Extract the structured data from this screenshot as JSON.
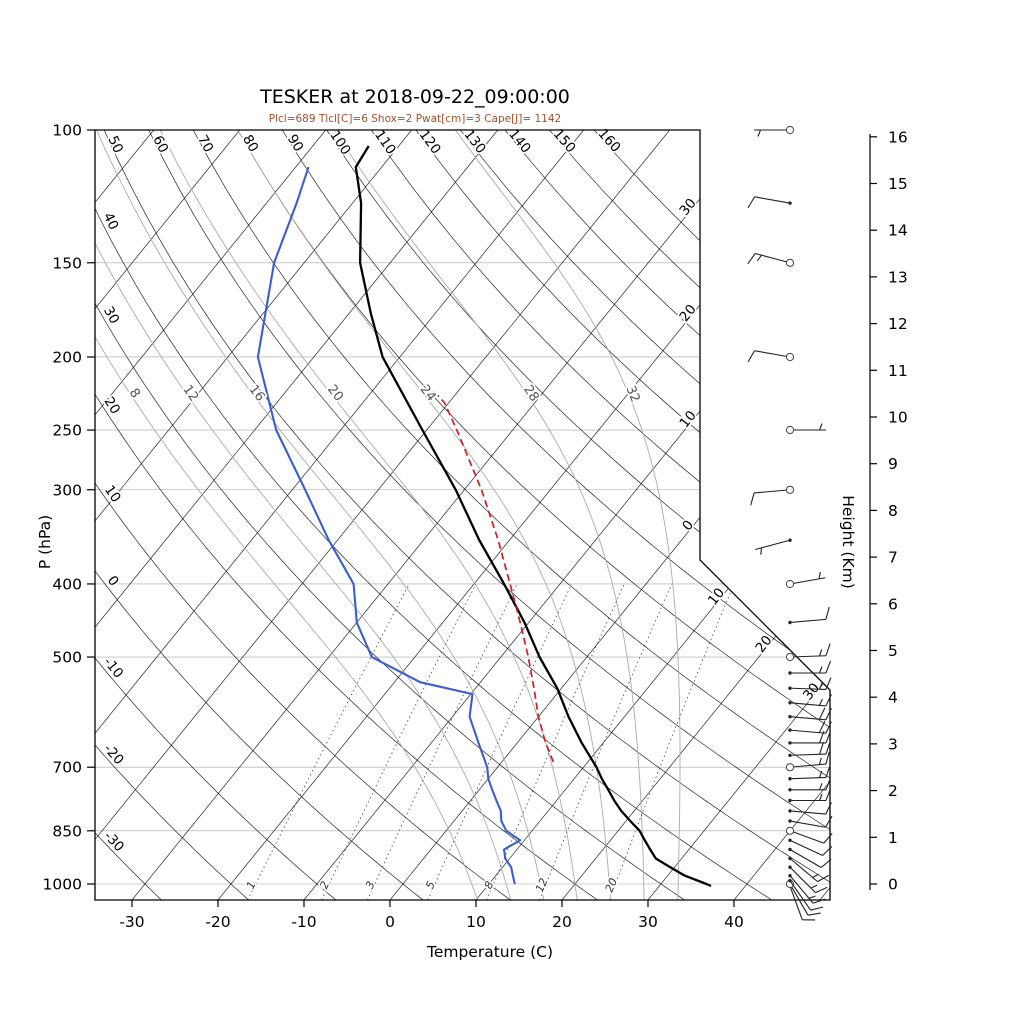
{
  "chart_data": {
    "type": "skewt",
    "title": "TESKER at 2018-09-22_09:00:00",
    "subtitle": "Plcl=689 Tlcl[C]=6 Shox=2 Pwat[cm]=3 Cape[J]= 1142",
    "axes": {
      "pressure_label": "P (hPa)",
      "temperature_label": "Temperature (C)",
      "height_label": "Height (Km)",
      "pressure_ticks": [
        100,
        150,
        200,
        250,
        300,
        400,
        500,
        700,
        850,
        1000
      ],
      "temperature_ticks": [
        -30,
        -20,
        -10,
        0,
        10,
        20,
        30,
        40
      ],
      "height_ticks": [
        0,
        1,
        2,
        3,
        4,
        5,
        6,
        7,
        8,
        9,
        10,
        11,
        12,
        13,
        14,
        15,
        16
      ]
    },
    "grid": {
      "isotherms_c": [
        -110,
        -100,
        -90,
        -80,
        -70,
        -60,
        -50,
        -40,
        -30,
        -20,
        -10,
        0,
        10,
        20,
        30,
        40,
        50
      ],
      "isotherm_edge_labels": [
        {
          "t": -30,
          "text": "30"
        },
        {
          "t": -20,
          "text": "20"
        },
        {
          "t": -10,
          "text": "10"
        },
        {
          "t": 0,
          "text": "0"
        },
        {
          "t": 10,
          "text": "10"
        },
        {
          "t": 20,
          "text": "20"
        },
        {
          "t": 30,
          "text": "30"
        }
      ],
      "dry_adiabats_c": [
        -30,
        -20,
        -10,
        0,
        10,
        20,
        30,
        40,
        50,
        60,
        70,
        80,
        90,
        100,
        110,
        120,
        130,
        140,
        150,
        160
      ],
      "dry_adiabat_left_labels": [
        40,
        30,
        20,
        10,
        0,
        -10,
        -20,
        -30
      ],
      "dry_adiabat_top_labels": [
        50,
        60,
        70,
        80,
        90,
        100,
        110,
        120,
        130,
        140,
        150,
        160
      ],
      "moist_adiabats_c": [
        8,
        12,
        16,
        20,
        24,
        28,
        32
      ],
      "mixing_ratios_g_kg": [
        1,
        2,
        3,
        5,
        8,
        12,
        20
      ]
    },
    "sounding": {
      "temperature": [
        [
          1006,
          36
        ],
        [
          1000,
          35.3
        ],
        [
          975,
          32
        ],
        [
          950,
          29.5
        ],
        [
          925,
          27
        ],
        [
          900,
          25.5
        ],
        [
          875,
          24
        ],
        [
          850,
          22.5
        ],
        [
          825,
          20.5
        ],
        [
          800,
          18.5
        ],
        [
          775,
          16.7
        ],
        [
          750,
          15
        ],
        [
          725,
          13.2
        ],
        [
          700,
          11.5
        ],
        [
          650,
          7.5
        ],
        [
          600,
          3.5
        ],
        [
          550,
          -0.5
        ],
        [
          500,
          -5.5
        ],
        [
          450,
          -10.5
        ],
        [
          400,
          -16.5
        ],
        [
          350,
          -23.5
        ],
        [
          300,
          -31
        ],
        [
          250,
          -40.5
        ],
        [
          200,
          -52
        ],
        [
          175,
          -57.5
        ],
        [
          150,
          -63.5
        ],
        [
          125,
          -69
        ],
        [
          112,
          -73
        ],
        [
          105,
          -73.5
        ]
      ],
      "dewpoint": [
        [
          1000,
          13
        ],
        [
          975,
          12
        ],
        [
          950,
          11
        ],
        [
          925,
          9.5
        ],
        [
          900,
          8.5
        ],
        [
          875,
          9.5
        ],
        [
          850,
          7
        ],
        [
          825,
          5.5
        ],
        [
          800,
          4.5
        ],
        [
          775,
          3
        ],
        [
          750,
          1.5
        ],
        [
          725,
          0
        ],
        [
          700,
          -1.2
        ],
        [
          650,
          -4.5
        ],
        [
          600,
          -8
        ],
        [
          560,
          -9.8
        ],
        [
          540,
          -17
        ],
        [
          500,
          -25
        ],
        [
          450,
          -30
        ],
        [
          400,
          -34
        ],
        [
          350,
          -41
        ],
        [
          300,
          -48.5
        ],
        [
          250,
          -57.5
        ],
        [
          200,
          -66.5
        ],
        [
          150,
          -73.5
        ],
        [
          125,
          -76.5
        ],
        [
          112,
          -78.5
        ]
      ],
      "parcel": [
        [
          689,
          6
        ],
        [
          650,
          3.3
        ],
        [
          600,
          0
        ],
        [
          550,
          -3.2
        ],
        [
          500,
          -6.8
        ],
        [
          450,
          -11
        ],
        [
          400,
          -15.8
        ],
        [
          350,
          -21.3
        ],
        [
          300,
          -28
        ],
        [
          250,
          -36.5
        ],
        [
          230,
          -40.5
        ],
        [
          218,
          -44
        ]
      ]
    },
    "wind_barbs": [
      {
        "p": 1006,
        "dir": 160,
        "spd": 10,
        "m": "d"
      },
      {
        "p": 1000,
        "dir": 150,
        "spd": 10,
        "m": "c"
      },
      {
        "p": 990,
        "dir": 145,
        "spd": 10,
        "m": "d"
      },
      {
        "p": 975,
        "dir": 140,
        "spd": 15,
        "m": "d"
      },
      {
        "p": 950,
        "dir": 135,
        "spd": 15,
        "m": "d"
      },
      {
        "p": 925,
        "dir": 130,
        "spd": 15,
        "m": "d"
      },
      {
        "p": 900,
        "dir": 120,
        "spd": 10,
        "m": "d"
      },
      {
        "p": 875,
        "dir": 115,
        "spd": 10,
        "m": "d"
      },
      {
        "p": 850,
        "dir": 110,
        "spd": 10,
        "m": "c"
      },
      {
        "p": 825,
        "dir": 100,
        "spd": 10,
        "m": "d"
      },
      {
        "p": 800,
        "dir": 95,
        "spd": 10,
        "m": "d"
      },
      {
        "p": 775,
        "dir": 90,
        "spd": 15,
        "m": "d"
      },
      {
        "p": 750,
        "dir": 90,
        "spd": 15,
        "m": "d"
      },
      {
        "p": 725,
        "dir": 88,
        "spd": 15,
        "m": "d"
      },
      {
        "p": 700,
        "dir": 85,
        "spd": 15,
        "m": "c"
      },
      {
        "p": 675,
        "dir": 88,
        "spd": 20,
        "m": "d"
      },
      {
        "p": 650,
        "dir": 90,
        "spd": 20,
        "m": "d"
      },
      {
        "p": 625,
        "dir": 95,
        "spd": 20,
        "m": "d"
      },
      {
        "p": 600,
        "dir": 95,
        "spd": 20,
        "m": "d"
      },
      {
        "p": 575,
        "dir": 95,
        "spd": 15,
        "m": "d"
      },
      {
        "p": 550,
        "dir": 92,
        "spd": 15,
        "m": "d"
      },
      {
        "p": 525,
        "dir": 90,
        "spd": 15,
        "m": "d"
      },
      {
        "p": 500,
        "dir": 88,
        "spd": 15,
        "m": "c"
      },
      {
        "p": 450,
        "dir": 85,
        "spd": 10,
        "m": "d"
      },
      {
        "p": 400,
        "dir": 80,
        "spd": 5,
        "m": "c"
      },
      {
        "p": 350,
        "dir": 255,
        "spd": 5,
        "m": "d"
      },
      {
        "p": 300,
        "dir": 265,
        "spd": 8,
        "m": "c"
      },
      {
        "p": 250,
        "dir": 90,
        "spd": 3,
        "m": "c"
      },
      {
        "p": 200,
        "dir": 280,
        "spd": 10,
        "m": "c"
      },
      {
        "p": 150,
        "dir": 285,
        "spd": 15,
        "m": "c"
      },
      {
        "p": 125,
        "dir": 280,
        "spd": 10,
        "m": "d"
      },
      {
        "p": 100,
        "dir": 270,
        "spd": 5,
        "m": "c"
      }
    ],
    "colors": {
      "temperature": "#000000",
      "dewpoint": "#3a5fcd",
      "parcel": "#cc2020",
      "subtitle": "#a0522d",
      "grid": "#000000",
      "moist_adiabat": "#ababab",
      "mixing_ratio": "#444444"
    }
  }
}
